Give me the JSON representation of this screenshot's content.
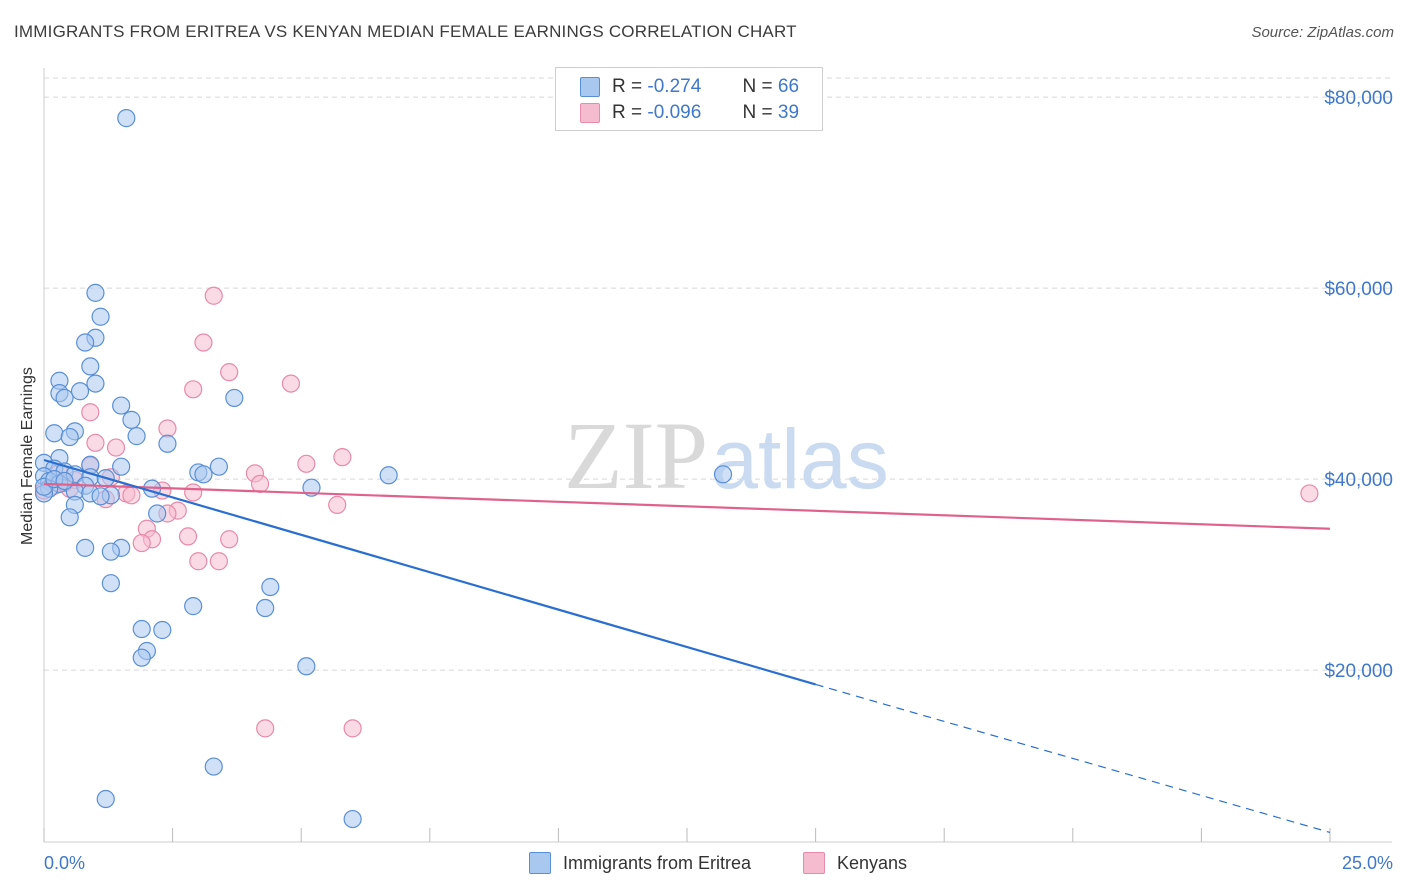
{
  "title": "IMMIGRANTS FROM ERITREA VS KENYAN MEDIAN FEMALE EARNINGS CORRELATION CHART",
  "source": "Source: ZipAtlas.com",
  "watermark": {
    "zip": "ZIP",
    "atlas": "atlas"
  },
  "colors": {
    "blue_fill": "#a9c8f0",
    "blue_stroke": "#5a8fd6",
    "blue_line": "#2a6fd0",
    "pink_fill": "#f5bcd0",
    "pink_stroke": "#e88aaa",
    "pink_line": "#e0628c",
    "tick": "#3f78c8",
    "grid": "#d8d8d8"
  },
  "legend": {
    "rows": [
      {
        "r_label": "R =",
        "r_value": "-0.274",
        "n_label": "N =",
        "n_value": "66",
        "color": "#a9c8f0",
        "border": "#5a8fd6"
      },
      {
        "r_label": "R =",
        "r_value": "-0.096",
        "n_label": "N =",
        "n_value": "39",
        "color": "#f5bcd0",
        "border": "#e88aaa"
      }
    ]
  },
  "bottom_legend": [
    {
      "label": "Immigrants from Eritrea",
      "color": "#a9c8f0",
      "border": "#5a8fd6"
    },
    {
      "label": "Kenyans",
      "color": "#f5bcd0",
      "border": "#e88aaa"
    }
  ],
  "chart_data": {
    "type": "scatter",
    "title": "IMMIGRANTS FROM ERITREA VS KENYAN MEDIAN FEMALE EARNINGS CORRELATION CHART",
    "xlabel": "",
    "ylabel": "Median Female Earnings",
    "xlim": [
      0,
      25
    ],
    "ylim": [
      2000,
      82000
    ],
    "x_tick_labels": [
      {
        "value": 0,
        "label": "0.0%"
      },
      {
        "value": 25,
        "label": "25.0%"
      }
    ],
    "y_tick_labels": [
      {
        "value": 20000,
        "label": "$20,000"
      },
      {
        "value": 40000,
        "label": "$40,000"
      },
      {
        "value": 60000,
        "label": "$60,000"
      },
      {
        "value": 80000,
        "label": "$80,000"
      }
    ],
    "series": [
      {
        "name": "Immigrants from Eritrea",
        "points": [
          [
            1.6,
            77800
          ],
          [
            1.0,
            59500
          ],
          [
            1.1,
            57000
          ],
          [
            1.0,
            54800
          ],
          [
            0.8,
            54300
          ],
          [
            0.9,
            51800
          ],
          [
            0.3,
            50300
          ],
          [
            1.0,
            50000
          ],
          [
            0.7,
            49200
          ],
          [
            0.3,
            49000
          ],
          [
            0.4,
            48500
          ],
          [
            3.7,
            48500
          ],
          [
            1.5,
            47700
          ],
          [
            1.7,
            46200
          ],
          [
            0.6,
            45000
          ],
          [
            0.2,
            44800
          ],
          [
            1.8,
            44500
          ],
          [
            0.5,
            44400
          ],
          [
            2.4,
            43700
          ],
          [
            0.3,
            42200
          ],
          [
            0.0,
            41700
          ],
          [
            0.9,
            41500
          ],
          [
            1.5,
            41300
          ],
          [
            3.4,
            41300
          ],
          [
            0.2,
            41100
          ],
          [
            0.4,
            40800
          ],
          [
            0.6,
            40500
          ],
          [
            3.0,
            40700
          ],
          [
            3.1,
            40500
          ],
          [
            6.7,
            40400
          ],
          [
            13.2,
            40500
          ],
          [
            0.0,
            40300
          ],
          [
            0.9,
            40200
          ],
          [
            1.2,
            40100
          ],
          [
            0.1,
            39800
          ],
          [
            0.3,
            39500
          ],
          [
            0.8,
            39300
          ],
          [
            0.1,
            39000
          ],
          [
            2.1,
            39000
          ],
          [
            5.2,
            39100
          ],
          [
            0.6,
            38700
          ],
          [
            0.9,
            38500
          ],
          [
            1.3,
            38300
          ],
          [
            1.1,
            38200
          ],
          [
            0.0,
            38500
          ],
          [
            0.0,
            39200
          ],
          [
            0.6,
            37300
          ],
          [
            2.2,
            36400
          ],
          [
            0.5,
            36000
          ],
          [
            0.8,
            32800
          ],
          [
            1.5,
            32800
          ],
          [
            1.3,
            32400
          ],
          [
            1.3,
            29100
          ],
          [
            4.4,
            28700
          ],
          [
            2.9,
            26700
          ],
          [
            4.3,
            26500
          ],
          [
            1.9,
            24300
          ],
          [
            2.3,
            24200
          ],
          [
            2.0,
            22000
          ],
          [
            1.9,
            21300
          ],
          [
            5.1,
            20400
          ],
          [
            3.3,
            9900
          ],
          [
            1.2,
            6500
          ],
          [
            6.0,
            4400
          ],
          [
            0.2,
            40000
          ],
          [
            0.4,
            39800
          ]
        ]
      },
      {
        "name": "Kenyans",
        "points": [
          [
            3.3,
            59200
          ],
          [
            3.1,
            54300
          ],
          [
            3.6,
            51200
          ],
          [
            4.8,
            50000
          ],
          [
            2.9,
            49400
          ],
          [
            0.9,
            47000
          ],
          [
            2.4,
            45300
          ],
          [
            1.0,
            43800
          ],
          [
            1.4,
            43300
          ],
          [
            5.8,
            42300
          ],
          [
            5.1,
            41600
          ],
          [
            0.9,
            41400
          ],
          [
            0.3,
            40700
          ],
          [
            4.1,
            40600
          ],
          [
            1.3,
            40200
          ],
          [
            0.6,
            39900
          ],
          [
            4.2,
            39500
          ],
          [
            0.2,
            39300
          ],
          [
            0.5,
            39000
          ],
          [
            0.0,
            38800
          ],
          [
            1.6,
            38500
          ],
          [
            2.9,
            38600
          ],
          [
            1.7,
            38300
          ],
          [
            1.2,
            37900
          ],
          [
            24.6,
            38500
          ],
          [
            5.7,
            37300
          ],
          [
            2.6,
            36700
          ],
          [
            2.4,
            36400
          ],
          [
            2.0,
            34800
          ],
          [
            2.8,
            34000
          ],
          [
            2.1,
            33700
          ],
          [
            3.6,
            33700
          ],
          [
            1.9,
            33300
          ],
          [
            3.0,
            31400
          ],
          [
            3.4,
            31400
          ],
          [
            4.3,
            13900
          ],
          [
            6.0,
            13900
          ],
          [
            2.3,
            38800
          ],
          [
            0.4,
            39600
          ]
        ]
      }
    ],
    "trend_lines": [
      {
        "series": "Immigrants from Eritrea",
        "x_start": 0,
        "y_start": 42000,
        "x_solid_end": 15,
        "y_solid_end": 18500,
        "x_end": 25,
        "y_end": 3000,
        "dashed_after_solid": true
      },
      {
        "series": "Kenyans",
        "x_start": 0,
        "y_start": 39500,
        "x_end": 25,
        "y_end": 34800
      }
    ]
  }
}
